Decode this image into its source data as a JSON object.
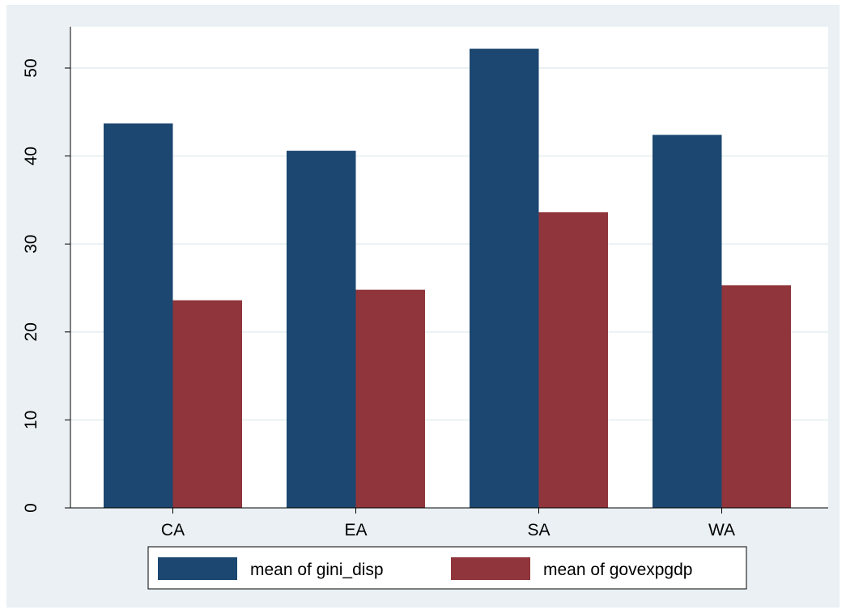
{
  "chart_data": {
    "type": "bar",
    "categories": [
      "CA",
      "EA",
      "SA",
      "WA"
    ],
    "series": [
      {
        "name": "mean of gini_disp",
        "values": [
          43.7,
          40.6,
          52.2,
          42.4
        ],
        "color": "#1c4770"
      },
      {
        "name": "mean of govexpgdp",
        "values": [
          23.6,
          24.8,
          33.6,
          25.3
        ],
        "color": "#90353b"
      }
    ],
    "ylim": [
      0,
      53
    ],
    "yticks": [
      0,
      10,
      20,
      30,
      40,
      50
    ],
    "grid": true,
    "legend_position": "bottom",
    "colors": {
      "plot_background": "#ffffff",
      "outer_background": "#eaf0f3",
      "gridline": "#eaf0f3"
    }
  }
}
